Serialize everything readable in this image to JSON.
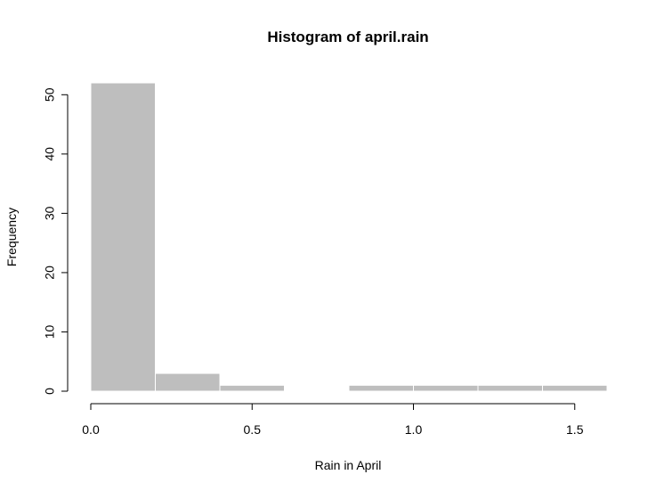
{
  "chart_data": {
    "type": "bar",
    "title": "Histogram of april.rain",
    "xlabel": "Rain in April",
    "ylabel": "Frequency",
    "bins": [
      {
        "start": 0.0,
        "end": 0.2,
        "count": 52
      },
      {
        "start": 0.2,
        "end": 0.4,
        "count": 3
      },
      {
        "start": 0.4,
        "end": 0.6,
        "count": 1
      },
      {
        "start": 0.6,
        "end": 0.8,
        "count": 0
      },
      {
        "start": 0.8,
        "end": 1.0,
        "count": 1
      },
      {
        "start": 1.0,
        "end": 1.2,
        "count": 1
      },
      {
        "start": 1.2,
        "end": 1.4,
        "count": 1
      },
      {
        "start": 1.4,
        "end": 1.6,
        "count": 1
      }
    ],
    "xticks": [
      {
        "value": 0.0,
        "label": "0.0"
      },
      {
        "value": 0.5,
        "label": "0.5"
      },
      {
        "value": 1.0,
        "label": "1.0"
      },
      {
        "value": 1.5,
        "label": "1.5"
      }
    ],
    "yticks": [
      {
        "value": 0,
        "label": "0"
      },
      {
        "value": 10,
        "label": "10"
      },
      {
        "value": 20,
        "label": "20"
      },
      {
        "value": 30,
        "label": "30"
      },
      {
        "value": 40,
        "label": "40"
      },
      {
        "value": 50,
        "label": "50"
      }
    ],
    "xlim": [
      0.0,
      1.6
    ],
    "ylim": [
      0,
      52
    ],
    "grid": false,
    "bar_color": "#bebebe",
    "bar_border_color": "#ffffff"
  }
}
